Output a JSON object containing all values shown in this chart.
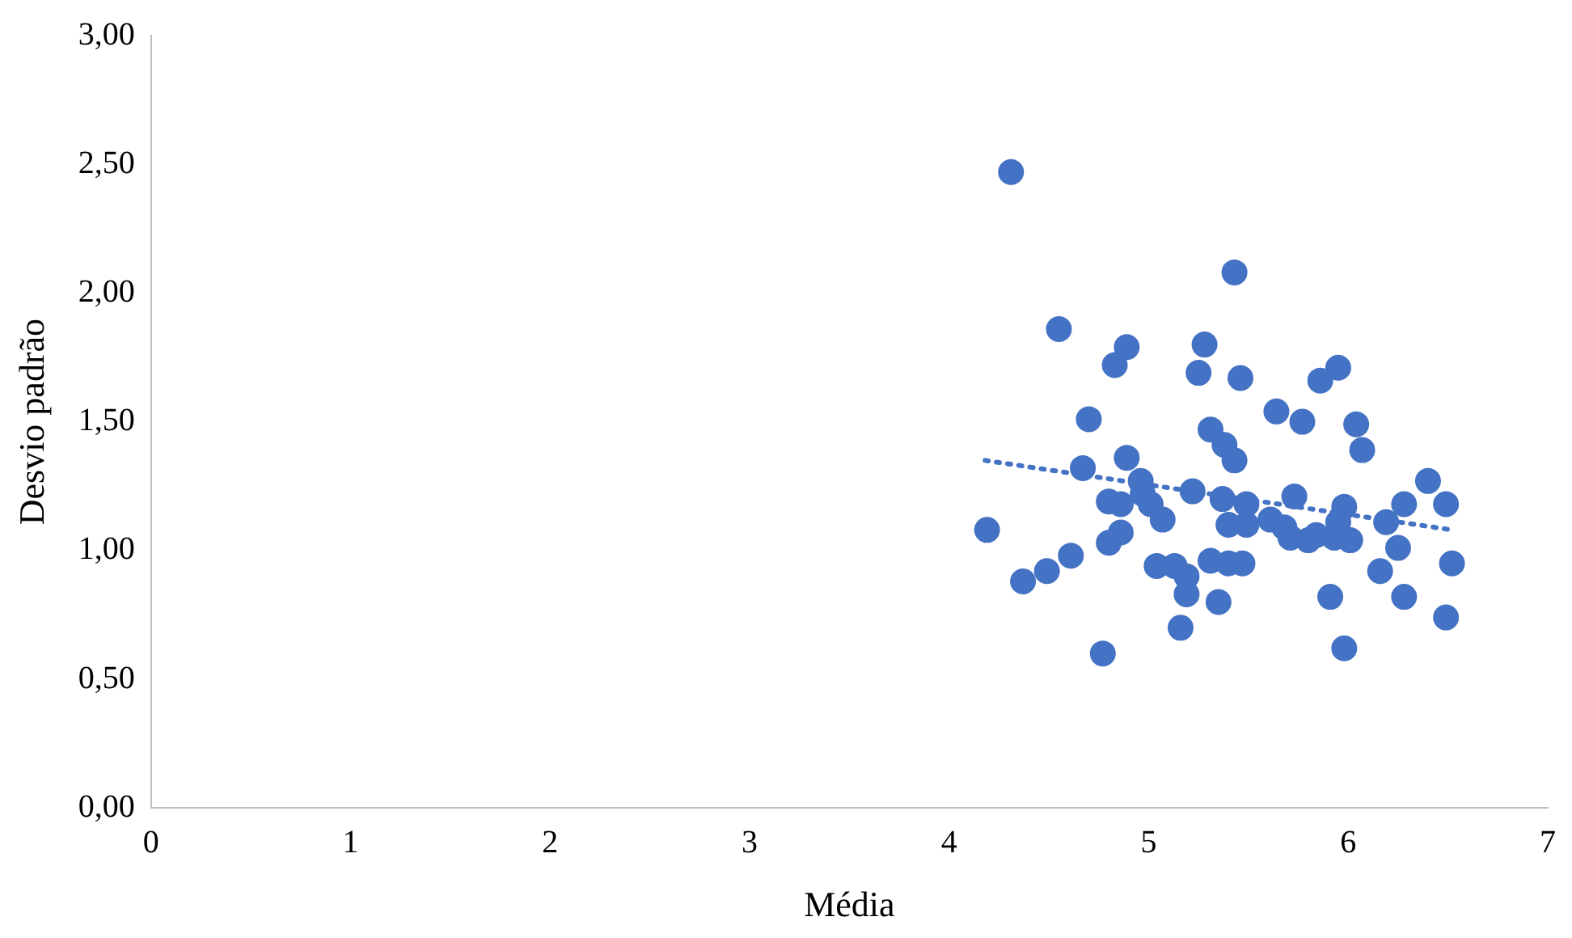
{
  "chart_data": {
    "type": "scatter",
    "xlabel": "Média",
    "ylabel": "Desvio padrão",
    "marker": "circle",
    "grid": false,
    "legend": false,
    "xlim": [
      0,
      7
    ],
    "xticks": [
      0,
      1,
      2,
      3,
      4,
      5,
      6,
      7
    ],
    "ylim": [
      0,
      3
    ],
    "yticks": [
      {
        "value": 0,
        "label": "0,00"
      },
      {
        "value": 0.5,
        "label": "0,50"
      },
      {
        "value": 1,
        "label": "1,00"
      },
      {
        "value": 1.5,
        "label": "1,50"
      },
      {
        "value": 2,
        "label": "2,00"
      },
      {
        "value": 2.5,
        "label": "2,50"
      },
      {
        "value": 3,
        "label": "3,00"
      }
    ],
    "series": [
      {
        "color": "#4472c4",
        "x": [
          4.31,
          5.43,
          4.55,
          4.89,
          4.83,
          5.28,
          5.25,
          5.46,
          4.7,
          5.31,
          5.38,
          5.43,
          4.89,
          4.67,
          4.96,
          4.97,
          4.8,
          4.86,
          5.01,
          5.07,
          5.22,
          5.37,
          5.4,
          4.19,
          4.86,
          4.8,
          4.61,
          4.49,
          4.37,
          5.04,
          5.13,
          5.19,
          5.19,
          5.31,
          5.4,
          5.35,
          5.16,
          4.77,
          5.95,
          5.86,
          5.64,
          5.77,
          6.04,
          6.07,
          6.4,
          6.49,
          6.28,
          6.19,
          5.49,
          5.73,
          5.98,
          5.49,
          5.61,
          5.68,
          5.71,
          5.8,
          5.84,
          5.93,
          5.95,
          6.01,
          6.25,
          5.47,
          6.52,
          6.16,
          5.91,
          6.28,
          6.49,
          5.98
        ],
        "values": [
          2.47,
          2.08,
          1.86,
          1.79,
          1.72,
          1.8,
          1.69,
          1.67,
          1.51,
          1.47,
          1.41,
          1.35,
          1.36,
          1.32,
          1.27,
          1.22,
          1.19,
          1.18,
          1.18,
          1.12,
          1.23,
          1.2,
          1.1,
          1.08,
          1.07,
          1.03,
          0.98,
          0.92,
          0.88,
          0.94,
          0.94,
          0.9,
          0.83,
          0.96,
          0.95,
          0.8,
          0.7,
          0.6,
          1.71,
          1.66,
          1.54,
          1.5,
          1.49,
          1.39,
          1.27,
          1.18,
          1.18,
          1.11,
          1.18,
          1.21,
          1.17,
          1.1,
          1.12,
          1.09,
          1.05,
          1.04,
          1.06,
          1.05,
          1.11,
          1.04,
          1.01,
          0.95,
          0.95,
          0.92,
          0.82,
          0.82,
          0.74,
          0.62
        ]
      },
      {
        "type": "line",
        "color": "#4472c4",
        "line_style": "dotted",
        "marker": "none",
        "x": [
          4.18,
          6.52
        ],
        "values": [
          1.35,
          1.08
        ]
      }
    ]
  }
}
